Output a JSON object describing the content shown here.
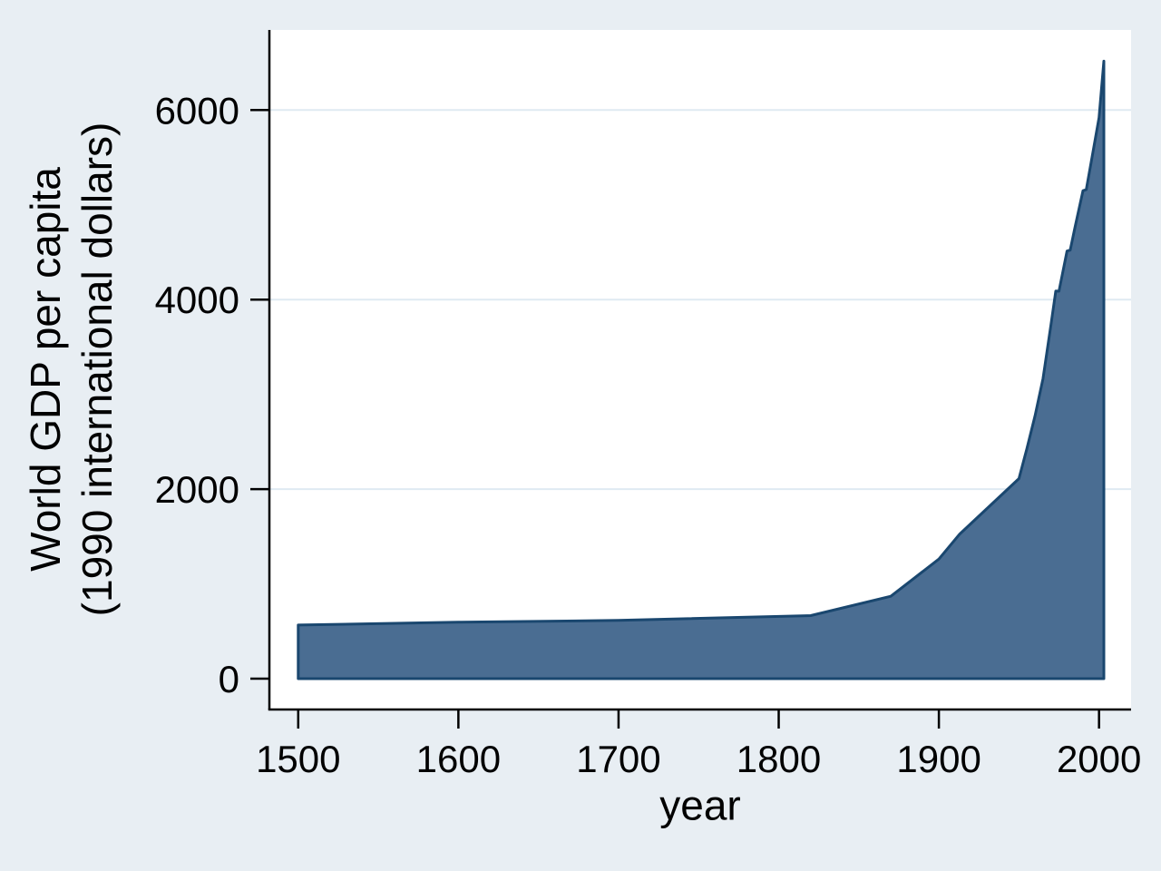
{
  "chart_data": {
    "type": "area",
    "title": "",
    "xlabel": "year",
    "ylabel_line1": "World GDP per capita",
    "ylabel_line2": "(1990 international dollars)",
    "series": [
      {
        "name": "World GDP per capita (1990 international dollars)",
        "points": [
          [
            1500,
            566
          ],
          [
            1600,
            596
          ],
          [
            1700,
            615
          ],
          [
            1820,
            666
          ],
          [
            1870,
            870
          ],
          [
            1900,
            1262
          ],
          [
            1913,
            1526
          ],
          [
            1950,
            2111
          ],
          [
            1955,
            2430
          ],
          [
            1960,
            2773
          ],
          [
            1965,
            3165
          ],
          [
            1970,
            3736
          ],
          [
            1973,
            4091
          ],
          [
            1975,
            4088
          ],
          [
            1980,
            4512
          ],
          [
            1982,
            4522
          ],
          [
            1985,
            4764
          ],
          [
            1990,
            5149
          ],
          [
            1992,
            5160
          ],
          [
            1995,
            5444
          ],
          [
            2000,
            5920
          ],
          [
            2003,
            6516
          ]
        ]
      }
    ],
    "baseline": 0,
    "x_ticks": [
      1500,
      1600,
      1700,
      1800,
      1900,
      2000
    ],
    "y_ticks": [
      0,
      2000,
      4000,
      6000
    ],
    "y_gridlines": [
      2000,
      4000,
      6000
    ],
    "xlim": [
      1482,
      2020
    ],
    "ylim": [
      -325,
      6845
    ],
    "grid": "horizontal-only",
    "legend": "none",
    "colors": {
      "page_background": "#e8eef3",
      "plot_background": "#ffffff",
      "gridline": "#dfeaf2",
      "area_fill": "#4a6d92",
      "area_stroke": "#1a476f",
      "axis_line": "#000000",
      "tick_label": "#000000"
    }
  }
}
